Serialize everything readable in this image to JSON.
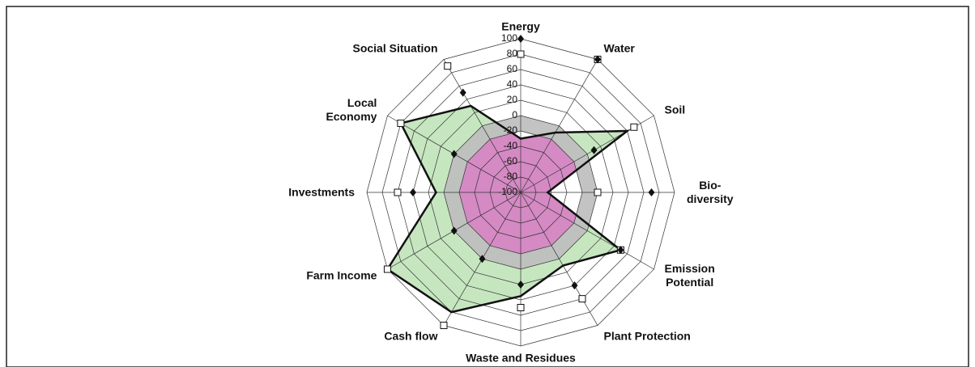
{
  "chart_data": {
    "type": "radar",
    "categories": [
      "Energy",
      "Water",
      "Soil",
      "Bio-\ndiversity",
      "Emission\nPotential",
      "Plant Protection",
      "Waste and Residues",
      "Cash flow",
      "Farm Income",
      "Investments",
      "Local\nEconomy",
      "Social Situation"
    ],
    "rlim": [
      -100,
      100
    ],
    "rticks": [
      -100,
      -80,
      -60,
      -40,
      -20,
      0,
      20,
      40,
      60,
      80,
      100
    ],
    "reference_band": [
      -20,
      0
    ],
    "band_colors": {
      "inner": "#d58ac4",
      "band": "#bdbdbd",
      "outer": "#c6e6c0"
    },
    "series": [
      {
        "color": "#111111",
        "marker": "line",
        "values": [
          -30,
          -10,
          60,
          -65,
          50,
          10,
          35,
          80,
          100,
          10,
          80,
          30
        ]
      },
      {
        "color": "#ffffff",
        "marker": "square",
        "values": [
          80,
          100,
          70,
          0,
          50,
          60,
          50,
          100,
          100,
          60,
          80,
          90
        ]
      },
      {
        "color": "#111111",
        "marker": "diamond",
        "values": [
          100,
          100,
          10,
          70,
          50,
          40,
          20,
          0,
          0,
          40,
          0,
          50
        ]
      }
    ]
  }
}
